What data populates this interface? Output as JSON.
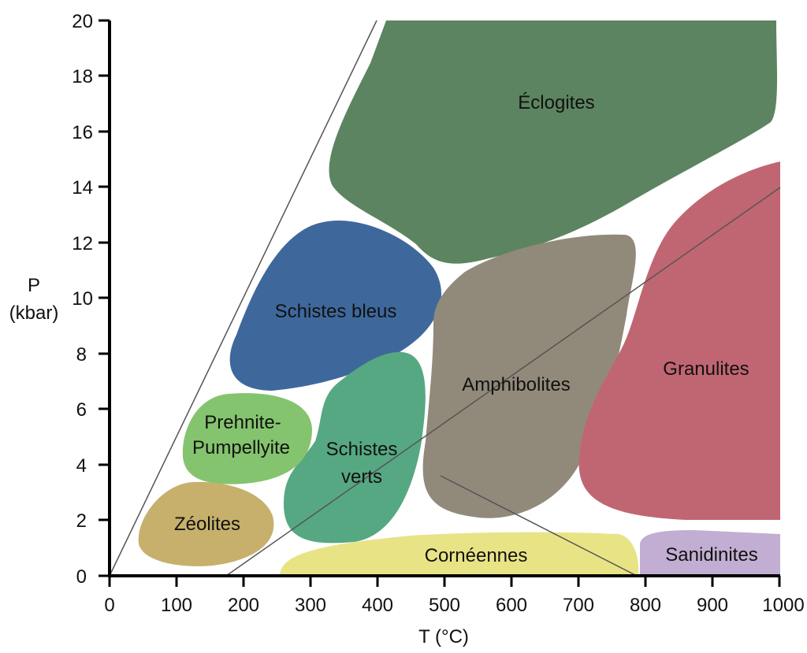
{
  "colors": {
    "eclogites": "#5c8460",
    "schistes_bleus": "#3e689c",
    "amphibolites": "#918a7b",
    "granulites": "#c06672",
    "schistes_verts": "#56a882",
    "prehnite": "#84c46e",
    "zeolites": "#c6b06c",
    "corneennes": "#e8e486",
    "sanidinites": "#c2aed2",
    "axis": "#000000",
    "guide_line": "#555555"
  },
  "facies": {
    "eclogites": "Éclogites",
    "schistes_bleus": "Schistes bleus",
    "amphibolites": "Amphibolites",
    "granulites": "Granulites",
    "prehnite_line1": "Prehnite-",
    "prehnite_line2": "Pumpellyite",
    "schistes_verts_line1": "Schistes",
    "schistes_verts_line2": "verts",
    "zeolites": "Zéolites",
    "corneennes": "Cornéennes",
    "sanidinites": "Sanidinites"
  },
  "chart_data": {
    "type": "diagram",
    "xlabel": "T (°C)",
    "ylabel_line1": "P",
    "ylabel_line2": "(kbar)",
    "xlim": [
      0,
      1000
    ],
    "ylim": [
      0,
      20
    ],
    "x_ticks": [
      "0",
      "100",
      "200",
      "300",
      "400",
      "500",
      "600",
      "700",
      "800",
      "900",
      "1000"
    ],
    "y_ticks": [
      "0",
      "2",
      "4",
      "6",
      "8",
      "10",
      "12",
      "14",
      "16",
      "18",
      "20"
    ]
  }
}
